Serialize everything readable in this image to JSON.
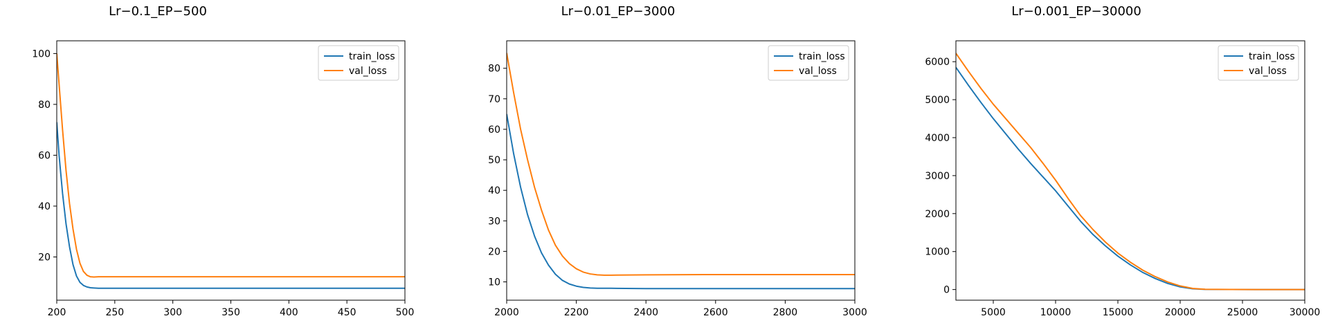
{
  "colors": {
    "train": "#1f77b4",
    "val": "#ff7f0e"
  },
  "chart_data": [
    {
      "type": "line",
      "title": "Lr−0.1_EP−500",
      "xlabel": "",
      "ylabel": "",
      "xlim": [
        200,
        500
      ],
      "ylim": [
        3,
        105
      ],
      "xticks": [
        200,
        250,
        300,
        350,
        400,
        450,
        500
      ],
      "yticks": [
        20,
        40,
        60,
        80,
        100
      ],
      "legend": "top-right",
      "grid": false,
      "series": [
        {
          "name": "train_loss",
          "color": "#1f77b4",
          "x": [
            200,
            202,
            205,
            208,
            211,
            214,
            217,
            220,
            223,
            226,
            229,
            232,
            236,
            240,
            250,
            300,
            400,
            500
          ],
          "y": [
            73,
            60,
            45,
            33,
            24,
            17,
            12.5,
            10,
            8.8,
            8.2,
            7.9,
            7.8,
            7.7,
            7.7,
            7.7,
            7.7,
            7.7,
            7.7
          ]
        },
        {
          "name": "val_loss",
          "color": "#ff7f0e",
          "x": [
            200,
            202,
            205,
            208,
            211,
            214,
            217,
            220,
            223,
            226,
            229,
            232,
            236,
            240,
            250,
            300,
            400,
            500
          ],
          "y": [
            100,
            88,
            70,
            54,
            41,
            31,
            23,
            17.5,
            14.3,
            12.8,
            12.2,
            12.1,
            12.2,
            12.2,
            12.2,
            12.2,
            12.2,
            12.2
          ]
        }
      ]
    },
    {
      "type": "line",
      "title": "Lr−0.01_EP−3000",
      "xlabel": "",
      "ylabel": "",
      "xlim": [
        2000,
        3000
      ],
      "ylim": [
        4,
        89
      ],
      "xticks": [
        2000,
        2200,
        2400,
        2600,
        2800,
        3000
      ],
      "yticks": [
        10,
        20,
        30,
        40,
        50,
        60,
        70,
        80
      ],
      "legend": "top-right",
      "grid": false,
      "series": [
        {
          "name": "train_loss",
          "color": "#1f77b4",
          "x": [
            2000,
            2020,
            2040,
            2060,
            2080,
            2100,
            2120,
            2140,
            2160,
            2180,
            2200,
            2220,
            2240,
            2260,
            2300,
            2400,
            2600,
            2800,
            3000
          ],
          "y": [
            65,
            52,
            41,
            32,
            25,
            19.5,
            15.5,
            12.5,
            10.5,
            9.3,
            8.6,
            8.2,
            8.0,
            7.9,
            7.9,
            7.8,
            7.8,
            7.8,
            7.8
          ]
        },
        {
          "name": "val_loss",
          "color": "#ff7f0e",
          "x": [
            2000,
            2020,
            2040,
            2060,
            2080,
            2100,
            2120,
            2140,
            2160,
            2180,
            2200,
            2220,
            2240,
            2260,
            2280,
            2300,
            2400,
            2600,
            2800,
            3000
          ],
          "y": [
            85,
            72,
            60,
            50,
            41,
            33.5,
            27,
            22,
            18.5,
            16,
            14.3,
            13.2,
            12.6,
            12.3,
            12.2,
            12.2,
            12.3,
            12.4,
            12.4,
            12.4
          ]
        }
      ]
    },
    {
      "type": "line",
      "title": "Lr−0.001_EP−30000",
      "xlabel": "",
      "ylabel": "",
      "xlim": [
        2000,
        30000
      ],
      "ylim": [
        -280,
        6550
      ],
      "xticks": [
        5000,
        10000,
        15000,
        20000,
        25000,
        30000
      ],
      "yticks": [
        0,
        1000,
        2000,
        3000,
        4000,
        5000,
        6000
      ],
      "legend": "top-right",
      "grid": false,
      "series": [
        {
          "name": "train_loss",
          "color": "#1f77b4",
          "x": [
            2000,
            3000,
            4000,
            5000,
            6000,
            7000,
            8000,
            9000,
            10000,
            11000,
            12000,
            13000,
            14000,
            15000,
            16000,
            17000,
            18000,
            19000,
            20000,
            21000,
            22000,
            24000,
            26000,
            30000
          ],
          "y": [
            5850,
            5380,
            4930,
            4500,
            4100,
            3700,
            3320,
            2960,
            2600,
            2200,
            1800,
            1450,
            1150,
            880,
            650,
            450,
            290,
            160,
            70,
            20,
            5,
            2,
            1,
            0
          ]
        },
        {
          "name": "val_loss",
          "color": "#ff7f0e",
          "x": [
            2000,
            3000,
            4000,
            5000,
            6000,
            7000,
            8000,
            9000,
            10000,
            11000,
            12000,
            13000,
            14000,
            15000,
            16000,
            17000,
            18000,
            19000,
            20000,
            21000,
            22000,
            24000,
            26000,
            30000
          ],
          "y": [
            6220,
            5750,
            5300,
            4880,
            4500,
            4120,
            3740,
            3320,
            2880,
            2400,
            1950,
            1580,
            1250,
            960,
            720,
            510,
            340,
            200,
            95,
            30,
            8,
            3,
            1,
            0
          ]
        }
      ]
    }
  ]
}
